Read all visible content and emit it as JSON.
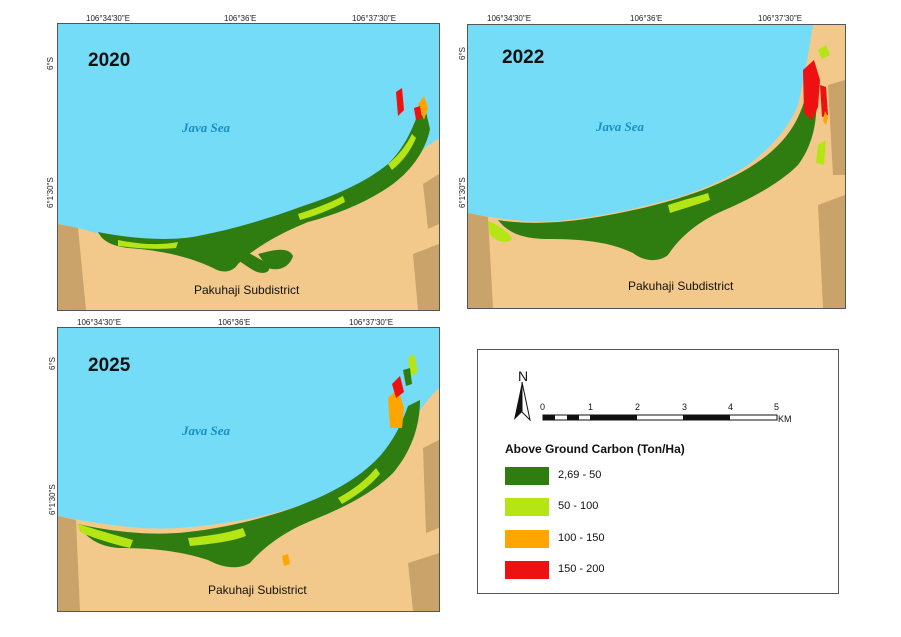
{
  "maps": [
    {
      "year": "2020",
      "sea_label": "Java Sea",
      "district_label": "Pakuhaji Subdistrict",
      "lon_ticks": [
        "106°34'30\"E",
        "106°36'E",
        "106°37'30\"E"
      ],
      "lat_ticks": [
        "6°S",
        "6°1'30\"S"
      ]
    },
    {
      "year": "2022",
      "sea_label": "Java Sea",
      "district_label": "Pakuhaji Subdistrict",
      "lon_ticks": [
        "106°34'30\"E",
        "106°36'E",
        "106°37'30\"E"
      ],
      "lat_ticks": [
        "6°S",
        "6°1'30\"S"
      ]
    },
    {
      "year": "2025",
      "sea_label": "Java Sea",
      "district_label": "Pakuhaji Subistrict",
      "lon_ticks": [
        "106°34'30\"E",
        "106°36'E",
        "106°37'30\"E"
      ],
      "lat_ticks": [
        "6°S",
        "6°1'30\"S"
      ]
    }
  ],
  "legend": {
    "north_label": "N",
    "scale_labels": [
      "0",
      "1",
      "2",
      "3",
      "4",
      "5"
    ],
    "scale_unit": "KM",
    "title": "Above Ground Carbon (Ton/Ha)",
    "classes": [
      {
        "label": "2,69 - 50",
        "color": "#2f7d10"
      },
      {
        "label": "50 - 100",
        "color": "#b6e516"
      },
      {
        "label": "100 - 150",
        "color": "#ffa500"
      },
      {
        "label": "150 - 200",
        "color": "#ee1111"
      }
    ]
  },
  "colors": {
    "sea": "#74dcf7",
    "land": "#f2c98a",
    "land_edge": "#c9a36a",
    "mangrove_low": "#2f7d10",
    "mangrove_mid": "#b6e516",
    "mangrove_high": "#ffa500",
    "mangrove_top": "#ee1111"
  }
}
